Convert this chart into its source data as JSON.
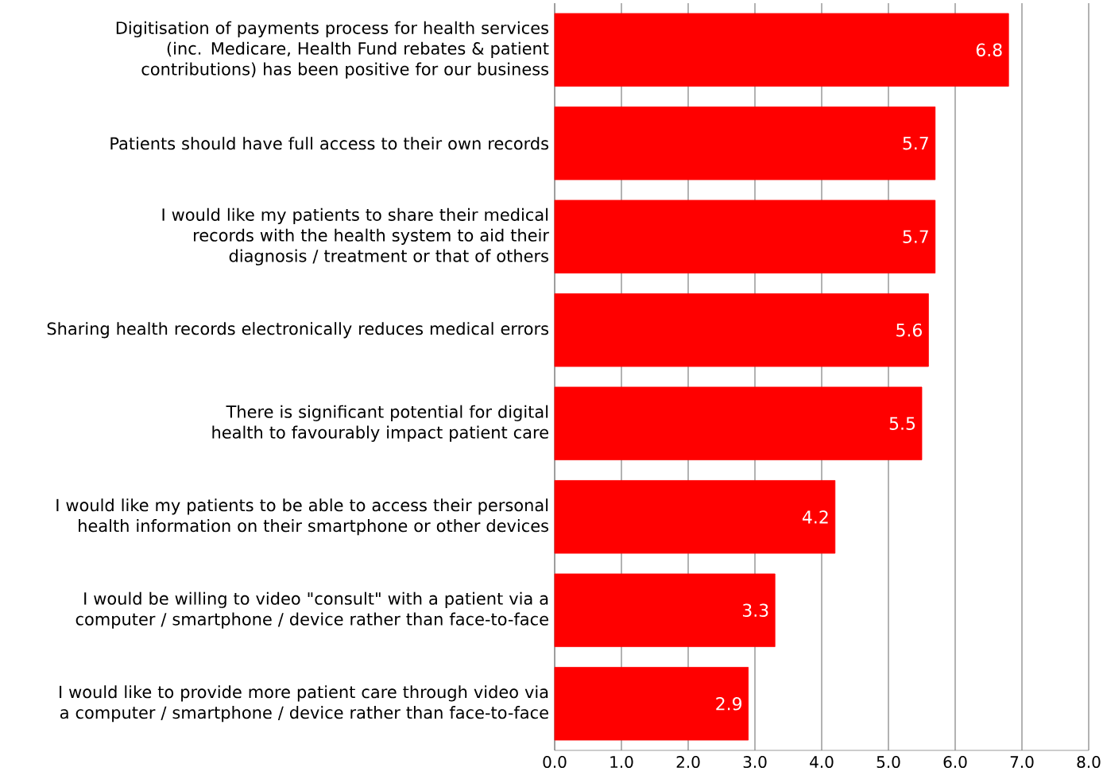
{
  "chart_data": {
    "type": "bar",
    "orientation": "horizontal",
    "categories": [
      "Digitisation of payments process for health services (inc. Medicare, Health Fund rebates & patient contributions) has been positive for our business",
      "Patients should have full access to their own records",
      "I would like my patients to share their medical records with the health system to aid their diagnosis / treatment or that of others",
      "Sharing health records electronically reduces medical errors",
      "There is significant potential for digital health to favourably impact patient care",
      "I would like my patients to be able to access their personal health information on their smartphone or other devices",
      "I would be willing to video \"consult\" with a patient via a computer / smartphone / device rather than face-to-face",
      "I would like to provide more patient care through video via a computer / smartphone / device rather than face-to-face"
    ],
    "values": [
      6.8,
      5.7,
      5.7,
      5.6,
      5.5,
      4.2,
      3.3,
      2.9
    ],
    "color": "#ff0000",
    "data_labels": true,
    "xlim": [
      0,
      8
    ],
    "xticks": [
      {
        "value": 0,
        "label": "0.0"
      },
      {
        "value": 1,
        "label": "1.0"
      },
      {
        "value": 2,
        "label": "2.0"
      },
      {
        "value": 3,
        "label": "3.0"
      },
      {
        "value": 4,
        "label": "4.0"
      },
      {
        "value": 5,
        "label": "5.0"
      },
      {
        "value": 6,
        "label": "6.0"
      },
      {
        "value": 7,
        "label": "7.0"
      },
      {
        "value": 8,
        "label": "8.0"
      }
    ],
    "grid": "x"
  }
}
